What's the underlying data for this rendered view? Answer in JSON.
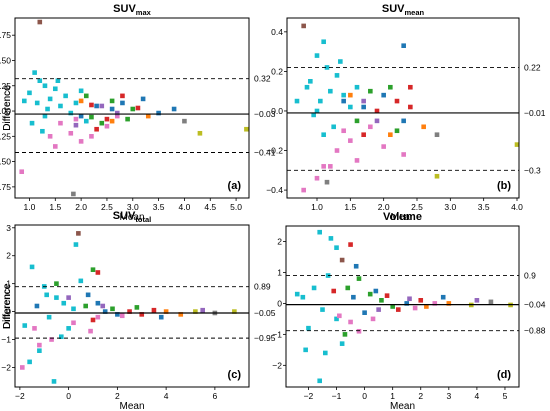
{
  "chart_data": [
    {
      "type": "scatter",
      "title_main": "SUV",
      "title_sub": "max",
      "xlabel": "Mean",
      "ylabel": "Difference",
      "panel_label": "(a)",
      "xlim": [
        0.72,
        5.25
      ],
      "ylim": [
        -0.86,
        0.92
      ],
      "xticks": [
        "1.0",
        "1.5",
        "2.0",
        "2.5",
        "3.0",
        "3.5",
        "4.0",
        "4.5",
        "5.0"
      ],
      "xtick_values": [
        1.0,
        1.5,
        2.0,
        2.5,
        3.0,
        3.5,
        4.0,
        4.5,
        5.0
      ],
      "yticks": [
        "0.75",
        "0.50",
        "0.25",
        "0.00",
        "−0.25",
        "−0.50",
        "−0.75"
      ],
      "ytick_values": [
        0.75,
        0.5,
        0.25,
        0,
        -0.25,
        -0.5,
        -0.75
      ],
      "hlines": [
        {
          "value": 0.32,
          "label": "0.32",
          "style": "dashed"
        },
        {
          "value": -0.03,
          "label": "−0.03",
          "style": "solid"
        },
        {
          "value": -0.41,
          "label": "−0.41",
          "style": "dashed"
        }
      ],
      "points": [
        [
          1.2,
          0.88,
          "#8c564b"
        ],
        [
          1.1,
          0.38,
          "#17becf"
        ],
        [
          1.2,
          0.3,
          "#17becf"
        ],
        [
          1.3,
          0.25,
          "#17becf"
        ],
        [
          1.0,
          0.18,
          "#17becf"
        ],
        [
          1.4,
          0.12,
          "#17becf"
        ],
        [
          1.5,
          0.22,
          "#17becf"
        ],
        [
          1.6,
          0.05,
          "#17becf"
        ],
        [
          1.15,
          0.08,
          "#17becf"
        ],
        [
          1.3,
          -0.05,
          "#17becf"
        ],
        [
          1.7,
          0.15,
          "#17becf"
        ],
        [
          1.05,
          -0.12,
          "#17becf"
        ],
        [
          1.8,
          -0.02,
          "#17becf"
        ],
        [
          0.9,
          0.1,
          "#17becf"
        ],
        [
          2.0,
          0.2,
          "#17becf"
        ],
        [
          1.25,
          -0.2,
          "#17becf"
        ],
        [
          1.55,
          0.3,
          "#17becf"
        ],
        [
          1.9,
          0.08,
          "#17becf"
        ],
        [
          2.1,
          -0.1,
          "#17becf"
        ],
        [
          1.35,
          0.02,
          "#17becf"
        ],
        [
          2.3,
          0.05,
          "#1f77b4"
        ],
        [
          2.8,
          0.08,
          "#1f77b4"
        ],
        [
          3.2,
          0.12,
          "#1f77b4"
        ],
        [
          2.0,
          -0.05,
          "#1f77b4"
        ],
        [
          3.5,
          -0.02,
          "#1f77b4"
        ],
        [
          2.6,
          0.02,
          "#1f77b4"
        ],
        [
          2.2,
          -0.06,
          "#2ca02c"
        ],
        [
          2.6,
          0.1,
          "#2ca02c"
        ],
        [
          3.0,
          0.02,
          "#2ca02c"
        ],
        [
          2.4,
          -0.12,
          "#2ca02c"
        ],
        [
          2.9,
          -0.08,
          "#2ca02c"
        ],
        [
          2.1,
          0.15,
          "#2ca02c"
        ],
        [
          2.5,
          -0.08,
          "#d62728"
        ],
        [
          3.1,
          0.03,
          "#d62728"
        ],
        [
          2.3,
          -0.18,
          "#d62728"
        ],
        [
          2.8,
          0.15,
          "#d62728"
        ],
        [
          2.2,
          0.06,
          "#d62728"
        ],
        [
          1.8,
          -0.22,
          "#e377c2"
        ],
        [
          2.0,
          -0.3,
          "#e377c2"
        ],
        [
          1.6,
          -0.12,
          "#e377c2"
        ],
        [
          2.2,
          -0.25,
          "#e377c2"
        ],
        [
          1.5,
          -0.35,
          "#e377c2"
        ],
        [
          2.5,
          -0.15,
          "#e377c2"
        ],
        [
          1.9,
          -0.08,
          "#e377c2"
        ],
        [
          2.7,
          -0.05,
          "#e377c2"
        ],
        [
          1.4,
          -0.25,
          "#e377c2"
        ],
        [
          2.4,
          0.05,
          "#9467bd"
        ],
        [
          2.7,
          -0.02,
          "#9467bd"
        ],
        [
          1.9,
          -0.14,
          "#9467bd"
        ],
        [
          2.0,
          0.1,
          "#ff7f0e"
        ],
        [
          2.6,
          -0.1,
          "#ff7f0e"
        ],
        [
          3.3,
          -0.05,
          "#ff7f0e"
        ],
        [
          4.3,
          -0.22,
          "#bcbd22"
        ],
        [
          4.0,
          -0.1,
          "#7f7f7f"
        ],
        [
          1.85,
          -0.82,
          "#7f7f7f"
        ],
        [
          0.85,
          -0.6,
          "#e377c2"
        ],
        [
          3.8,
          0.02,
          "#1f77b4"
        ],
        [
          5.2,
          -0.18,
          "#bcbd22"
        ]
      ]
    },
    {
      "type": "scatter",
      "title_main": "SUV",
      "title_sub": "mean",
      "xlabel": "Mean",
      "ylabel": "Difference",
      "panel_label": "(b)",
      "xlim": [
        0.55,
        4.03
      ],
      "ylim": [
        -0.44,
        0.47
      ],
      "xticks": [
        "1.0",
        "1.5",
        "2.0",
        "2.5",
        "3.0",
        "3.5",
        "4.0"
      ],
      "xtick_values": [
        1.0,
        1.5,
        2.0,
        2.5,
        3.0,
        3.5,
        4.0
      ],
      "yticks": [
        "0.4",
        "0.2",
        "0.0",
        "−0.2",
        "−0.4"
      ],
      "ytick_values": [
        0.4,
        0.2,
        0,
        -0.2,
        -0.4
      ],
      "hlines": [
        {
          "value": 0.22,
          "label": "0.22",
          "style": "dashed"
        },
        {
          "value": -0.01,
          "label": "−0.01",
          "style": "solid"
        },
        {
          "value": -0.3,
          "label": "−0.3",
          "style": "dashed"
        }
      ],
      "points": [
        [
          0.8,
          0.43,
          "#8c564b"
        ],
        [
          1.1,
          0.35,
          "#17becf"
        ],
        [
          1.0,
          0.28,
          "#17becf"
        ],
        [
          1.15,
          0.22,
          "#17becf"
        ],
        [
          0.9,
          0.15,
          "#17becf"
        ],
        [
          1.2,
          0.1,
          "#17becf"
        ],
        [
          1.3,
          0.18,
          "#17becf"
        ],
        [
          1.05,
          0.05,
          "#17becf"
        ],
        [
          0.95,
          -0.02,
          "#17becf"
        ],
        [
          1.4,
          0.08,
          "#17becf"
        ],
        [
          1.25,
          -0.08,
          "#17becf"
        ],
        [
          0.85,
          0.12,
          "#17becf"
        ],
        [
          1.5,
          0.02,
          "#17becf"
        ],
        [
          1.1,
          -0.12,
          "#17becf"
        ],
        [
          1.6,
          0.12,
          "#17becf"
        ],
        [
          0.7,
          0.05,
          "#17becf"
        ],
        [
          1.35,
          0.25,
          "#17becf"
        ],
        [
          1.0,
          0.0,
          "#17becf"
        ],
        [
          2.0,
          0.08,
          "#1f77b4"
        ],
        [
          2.3,
          -0.05,
          "#1f77b4"
        ],
        [
          1.7,
          0.02,
          "#1f77b4"
        ],
        [
          1.4,
          0.05,
          "#1f77b4"
        ],
        [
          1.8,
          0.1,
          "#2ca02c"
        ],
        [
          2.1,
          0.12,
          "#2ca02c"
        ],
        [
          1.6,
          -0.05,
          "#2ca02c"
        ],
        [
          2.2,
          -0.1,
          "#2ca02c"
        ],
        [
          1.9,
          0.0,
          "#d62728"
        ],
        [
          2.2,
          0.05,
          "#d62728"
        ],
        [
          1.7,
          -0.12,
          "#d62728"
        ],
        [
          2.4,
          0.02,
          "#d62728"
        ],
        [
          1.5,
          -0.15,
          "#e377c2"
        ],
        [
          1.3,
          -0.2,
          "#e377c2"
        ],
        [
          1.6,
          -0.25,
          "#e377c2"
        ],
        [
          1.8,
          -0.08,
          "#e377c2"
        ],
        [
          1.2,
          -0.28,
          "#e377c2"
        ],
        [
          2.0,
          -0.18,
          "#e377c2"
        ],
        [
          1.4,
          -0.1,
          "#e377c2"
        ],
        [
          1.7,
          0.05,
          "#9467bd"
        ],
        [
          1.9,
          -0.05,
          "#9467bd"
        ],
        [
          1.5,
          0.08,
          "#ff7f0e"
        ],
        [
          2.1,
          -0.12,
          "#ff7f0e"
        ],
        [
          2.8,
          -0.12,
          "#7f7f7f"
        ],
        [
          2.6,
          -0.08,
          "#ff7f0e"
        ],
        [
          2.8,
          -0.33,
          "#bcbd22"
        ],
        [
          2.4,
          0.12,
          "#d62728"
        ],
        [
          1.0,
          -0.34,
          "#e377c2"
        ],
        [
          1.15,
          -0.36,
          "#7f7f7f"
        ],
        [
          0.8,
          -0.4,
          "#e377c2"
        ],
        [
          2.3,
          0.33,
          "#1f77b4"
        ],
        [
          4.0,
          -0.17,
          "#bcbd22"
        ],
        [
          1.1,
          -0.28,
          "#e377c2"
        ],
        [
          2.3,
          -0.22,
          "#e377c2"
        ]
      ]
    },
    {
      "type": "scatter",
      "title_main": "SUV",
      "title_sub": "total",
      "xlabel": "Mean",
      "ylabel": "Difference",
      "panel_label": "(c)",
      "xlim": [
        -2.2,
        7.4
      ],
      "ylim": [
        -2.7,
        3.1
      ],
      "xticks": [
        "−2",
        "0",
        "2",
        "4",
        "6"
      ],
      "xtick_values": [
        -2,
        0,
        2,
        4,
        6
      ],
      "yticks": [
        "3",
        "2",
        "1",
        "0",
        "−1",
        "−2"
      ],
      "ytick_values": [
        3,
        2,
        1,
        0,
        -1,
        -2
      ],
      "hlines": [
        {
          "value": 0.89,
          "label": "0.89",
          "style": "dashed"
        },
        {
          "value": -0.05,
          "label": "−0.05",
          "style": "solid"
        },
        {
          "value": -0.95,
          "label": "−0.95",
          "style": "dashed"
        }
      ],
      "points": [
        [
          0.4,
          2.8,
          "#8c564b"
        ],
        [
          0.3,
          2.4,
          "#17becf"
        ],
        [
          -1.5,
          1.6,
          "#17becf"
        ],
        [
          -1.0,
          0.9,
          "#17becf"
        ],
        [
          -0.5,
          0.5,
          "#17becf"
        ],
        [
          -0.8,
          -0.2,
          "#17becf"
        ],
        [
          -0.3,
          -0.9,
          "#17becf"
        ],
        [
          -1.2,
          -1.4,
          "#17becf"
        ],
        [
          -0.6,
          -2.5,
          "#17becf"
        ],
        [
          -0.2,
          0.3,
          "#17becf"
        ],
        [
          0.0,
          -0.6,
          "#17becf"
        ],
        [
          -1.8,
          -0.5,
          "#17becf"
        ],
        [
          0.5,
          1.1,
          "#17becf"
        ],
        [
          -0.9,
          0.6,
          "#17becf"
        ],
        [
          0.2,
          0.1,
          "#17becf"
        ],
        [
          1.0,
          1.5,
          "#2ca02c"
        ],
        [
          0.8,
          0.6,
          "#1f77b4"
        ],
        [
          1.2,
          0.3,
          "#1f77b4"
        ],
        [
          1.5,
          0.0,
          "#1f77b4"
        ],
        [
          2.0,
          -0.1,
          "#1f77b4"
        ],
        [
          -0.5,
          1.0,
          "#2ca02c"
        ],
        [
          0.7,
          0.2,
          "#2ca02c"
        ],
        [
          1.8,
          0.1,
          "#2ca02c"
        ],
        [
          2.5,
          0.0,
          "#d62728"
        ],
        [
          3.0,
          -0.1,
          "#d62728"
        ],
        [
          1.0,
          -0.3,
          "#d62728"
        ],
        [
          3.5,
          0.05,
          "#d62728"
        ],
        [
          -1.2,
          -1.2,
          "#e377c2"
        ],
        [
          -1.4,
          -0.6,
          "#e377c2"
        ],
        [
          -0.7,
          -1.0,
          "#e377c2"
        ],
        [
          0.2,
          -0.4,
          "#e377c2"
        ],
        [
          1.2,
          -0.2,
          "#e377c2"
        ],
        [
          2.2,
          -0.15,
          "#e377c2"
        ],
        [
          0.0,
          0.5,
          "#9467bd"
        ],
        [
          1.4,
          0.2,
          "#9467bd"
        ],
        [
          4.0,
          0.0,
          "#ff7f0e"
        ],
        [
          4.6,
          -0.1,
          "#ff7f0e"
        ],
        [
          5.2,
          0.0,
          "#bcbd22"
        ],
        [
          6.0,
          -0.05,
          "#7f7f7f"
        ],
        [
          6.8,
          0.0,
          "#bcbd22"
        ],
        [
          -1.9,
          -2.0,
          "#e377c2"
        ],
        [
          -1.6,
          -1.8,
          "#17becf"
        ],
        [
          1.2,
          1.4,
          "#d62728"
        ],
        [
          3.8,
          -0.2,
          "#1f77b4"
        ],
        [
          2.8,
          0.15,
          "#2ca02c"
        ],
        [
          5.5,
          0.05,
          "#9467bd"
        ],
        [
          0.9,
          -0.7,
          "#e377c2"
        ],
        [
          -1.3,
          0.2,
          "#1f77b4"
        ]
      ]
    },
    {
      "type": "scatter",
      "title_main": "Volume",
      "title_sub": "",
      "xlabel": "Mean",
      "ylabel": "Difference",
      "panel_label": "(d)",
      "xlim": [
        -2.8,
        5.5
      ],
      "ylim": [
        -2.7,
        2.5
      ],
      "xticks": [
        "−2",
        "−1",
        "0",
        "1",
        "2",
        "3",
        "4",
        "5"
      ],
      "xtick_values": [
        -2,
        -1,
        0,
        1,
        2,
        3,
        4,
        5
      ],
      "yticks": [
        "2",
        "1",
        "0",
        "−1",
        "−2"
      ],
      "ytick_values": [
        2,
        1,
        0,
        -1,
        -2
      ],
      "hlines": [
        {
          "value": 0.9,
          "label": "0.9",
          "style": "dashed"
        },
        {
          "value": -0.04,
          "label": "−0.04",
          "style": "solid"
        },
        {
          "value": -0.88,
          "label": "−0.88",
          "style": "dashed"
        }
      ],
      "points": [
        [
          -1.6,
          2.3,
          "#17becf"
        ],
        [
          -1.2,
          2.1,
          "#17becf"
        ],
        [
          -1.0,
          1.8,
          "#17becf"
        ],
        [
          -0.8,
          1.4,
          "#8c564b"
        ],
        [
          -0.5,
          1.9,
          "#d62728"
        ],
        [
          -0.3,
          1.2,
          "#1f77b4"
        ],
        [
          -1.3,
          0.9,
          "#17becf"
        ],
        [
          -1.8,
          0.5,
          "#17becf"
        ],
        [
          -2.2,
          0.2,
          "#17becf"
        ],
        [
          -1.5,
          -0.2,
          "#17becf"
        ],
        [
          -1.0,
          -0.5,
          "#17becf"
        ],
        [
          -2.0,
          -0.8,
          "#17becf"
        ],
        [
          -1.6,
          -2.5,
          "#17becf"
        ],
        [
          -0.8,
          -1.3,
          "#17becf"
        ],
        [
          -2.4,
          0.3,
          "#17becf"
        ],
        [
          -0.6,
          0.5,
          "#2ca02c"
        ],
        [
          -0.2,
          0.8,
          "#2ca02c"
        ],
        [
          0.2,
          0.3,
          "#2ca02c"
        ],
        [
          0.6,
          0.1,
          "#2ca02c"
        ],
        [
          1.0,
          -0.1,
          "#2ca02c"
        ],
        [
          -0.4,
          0.2,
          "#1f77b4"
        ],
        [
          0.0,
          -0.3,
          "#1f77b4"
        ],
        [
          0.4,
          0.4,
          "#1f77b4"
        ],
        [
          1.5,
          0.0,
          "#1f77b4"
        ],
        [
          0.8,
          0.25,
          "#d62728"
        ],
        [
          1.2,
          -0.2,
          "#d62728"
        ],
        [
          2.0,
          0.1,
          "#d62728"
        ],
        [
          -0.9,
          -0.4,
          "#e377c2"
        ],
        [
          -0.5,
          -0.6,
          "#e377c2"
        ],
        [
          0.3,
          -0.5,
          "#e377c2"
        ],
        [
          1.8,
          -0.15,
          "#e377c2"
        ],
        [
          2.5,
          0.0,
          "#e377c2"
        ],
        [
          0.5,
          -0.2,
          "#9467bd"
        ],
        [
          1.6,
          0.15,
          "#9467bd"
        ],
        [
          2.2,
          -0.1,
          "#ff7f0e"
        ],
        [
          3.0,
          0.0,
          "#ff7f0e"
        ],
        [
          3.8,
          -0.05,
          "#bcbd22"
        ],
        [
          4.5,
          0.05,
          "#7f7f7f"
        ],
        [
          5.2,
          -0.05,
          "#bcbd22"
        ],
        [
          -1.4,
          -1.6,
          "#17becf"
        ],
        [
          -2.1,
          -1.5,
          "#17becf"
        ],
        [
          -0.7,
          -1.0,
          "#2ca02c"
        ],
        [
          2.8,
          0.2,
          "#1f77b4"
        ],
        [
          4.0,
          0.1,
          "#9467bd"
        ],
        [
          -1.1,
          0.4,
          "#d62728"
        ],
        [
          -0.2,
          -0.9,
          "#e377c2"
        ]
      ]
    }
  ]
}
